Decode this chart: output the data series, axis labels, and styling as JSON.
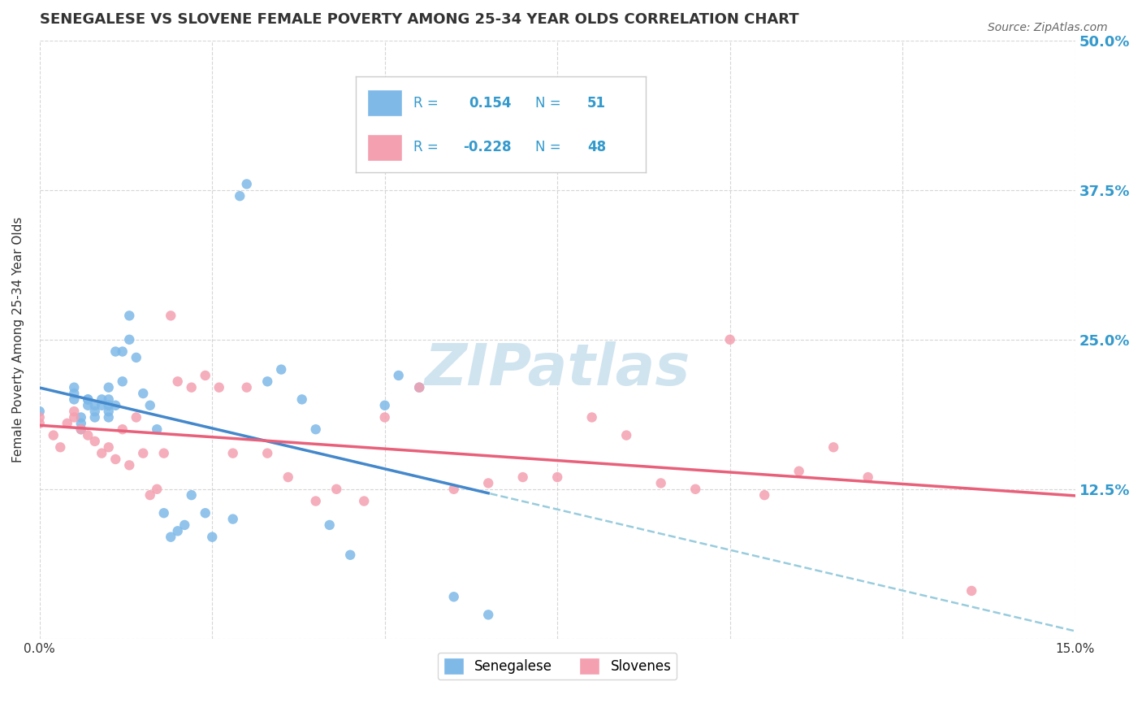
{
  "title": "SENEGALESE VS SLOVENE FEMALE POVERTY AMONG 25-34 YEAR OLDS CORRELATION CHART",
  "source": "Source: ZipAtlas.com",
  "ylabel": "Female Poverty Among 25-34 Year Olds",
  "xlim": [
    0.0,
    0.15
  ],
  "ylim": [
    0.0,
    0.5
  ],
  "yticks": [
    0.0,
    0.125,
    0.25,
    0.375,
    0.5
  ],
  "background_color": "#ffffff",
  "grid_color": "#cccccc",
  "watermark_text": "ZIPatlas",
  "watermark_color": "#d0e4f0",
  "blue_color": "#7EB9E8",
  "pink_color": "#F4A0B0",
  "blue_line_color": "#4488cc",
  "pink_line_color": "#E8607A",
  "dashed_line_color": "#99ccdd",
  "legend_text_color": "#3399cc",
  "R_blue": 0.154,
  "N_blue": 51,
  "R_pink": -0.228,
  "N_pink": 48,
  "senegalese_x": [
    0.0,
    0.005,
    0.005,
    0.005,
    0.006,
    0.006,
    0.006,
    0.007,
    0.007,
    0.007,
    0.008,
    0.008,
    0.008,
    0.009,
    0.009,
    0.01,
    0.01,
    0.01,
    0.01,
    0.01,
    0.011,
    0.011,
    0.012,
    0.012,
    0.013,
    0.013,
    0.014,
    0.015,
    0.016,
    0.017,
    0.018,
    0.019,
    0.02,
    0.021,
    0.022,
    0.024,
    0.025,
    0.028,
    0.029,
    0.03,
    0.033,
    0.035,
    0.038,
    0.04,
    0.042,
    0.045,
    0.05,
    0.052,
    0.055,
    0.06,
    0.065
  ],
  "senegalese_y": [
    0.19,
    0.21,
    0.205,
    0.2,
    0.175,
    0.18,
    0.185,
    0.195,
    0.2,
    0.2,
    0.195,
    0.19,
    0.185,
    0.195,
    0.2,
    0.21,
    0.2,
    0.195,
    0.19,
    0.185,
    0.195,
    0.24,
    0.24,
    0.215,
    0.27,
    0.25,
    0.235,
    0.205,
    0.195,
    0.175,
    0.105,
    0.085,
    0.09,
    0.095,
    0.12,
    0.105,
    0.085,
    0.1,
    0.37,
    0.38,
    0.215,
    0.225,
    0.2,
    0.175,
    0.095,
    0.07,
    0.195,
    0.22,
    0.21,
    0.035,
    0.02
  ],
  "slovene_x": [
    0.0,
    0.0,
    0.002,
    0.003,
    0.004,
    0.005,
    0.005,
    0.006,
    0.007,
    0.008,
    0.009,
    0.01,
    0.011,
    0.012,
    0.013,
    0.014,
    0.015,
    0.016,
    0.017,
    0.018,
    0.019,
    0.02,
    0.022,
    0.024,
    0.026,
    0.028,
    0.03,
    0.033,
    0.036,
    0.04,
    0.043,
    0.047,
    0.05,
    0.055,
    0.06,
    0.065,
    0.07,
    0.075,
    0.08,
    0.085,
    0.09,
    0.095,
    0.1,
    0.105,
    0.11,
    0.115,
    0.12,
    0.135
  ],
  "slovene_y": [
    0.18,
    0.185,
    0.17,
    0.16,
    0.18,
    0.185,
    0.19,
    0.175,
    0.17,
    0.165,
    0.155,
    0.16,
    0.15,
    0.175,
    0.145,
    0.185,
    0.155,
    0.12,
    0.125,
    0.155,
    0.27,
    0.215,
    0.21,
    0.22,
    0.21,
    0.155,
    0.21,
    0.155,
    0.135,
    0.115,
    0.125,
    0.115,
    0.185,
    0.21,
    0.125,
    0.13,
    0.135,
    0.135,
    0.185,
    0.17,
    0.13,
    0.125,
    0.25,
    0.12,
    0.14,
    0.16,
    0.135,
    0.04
  ]
}
